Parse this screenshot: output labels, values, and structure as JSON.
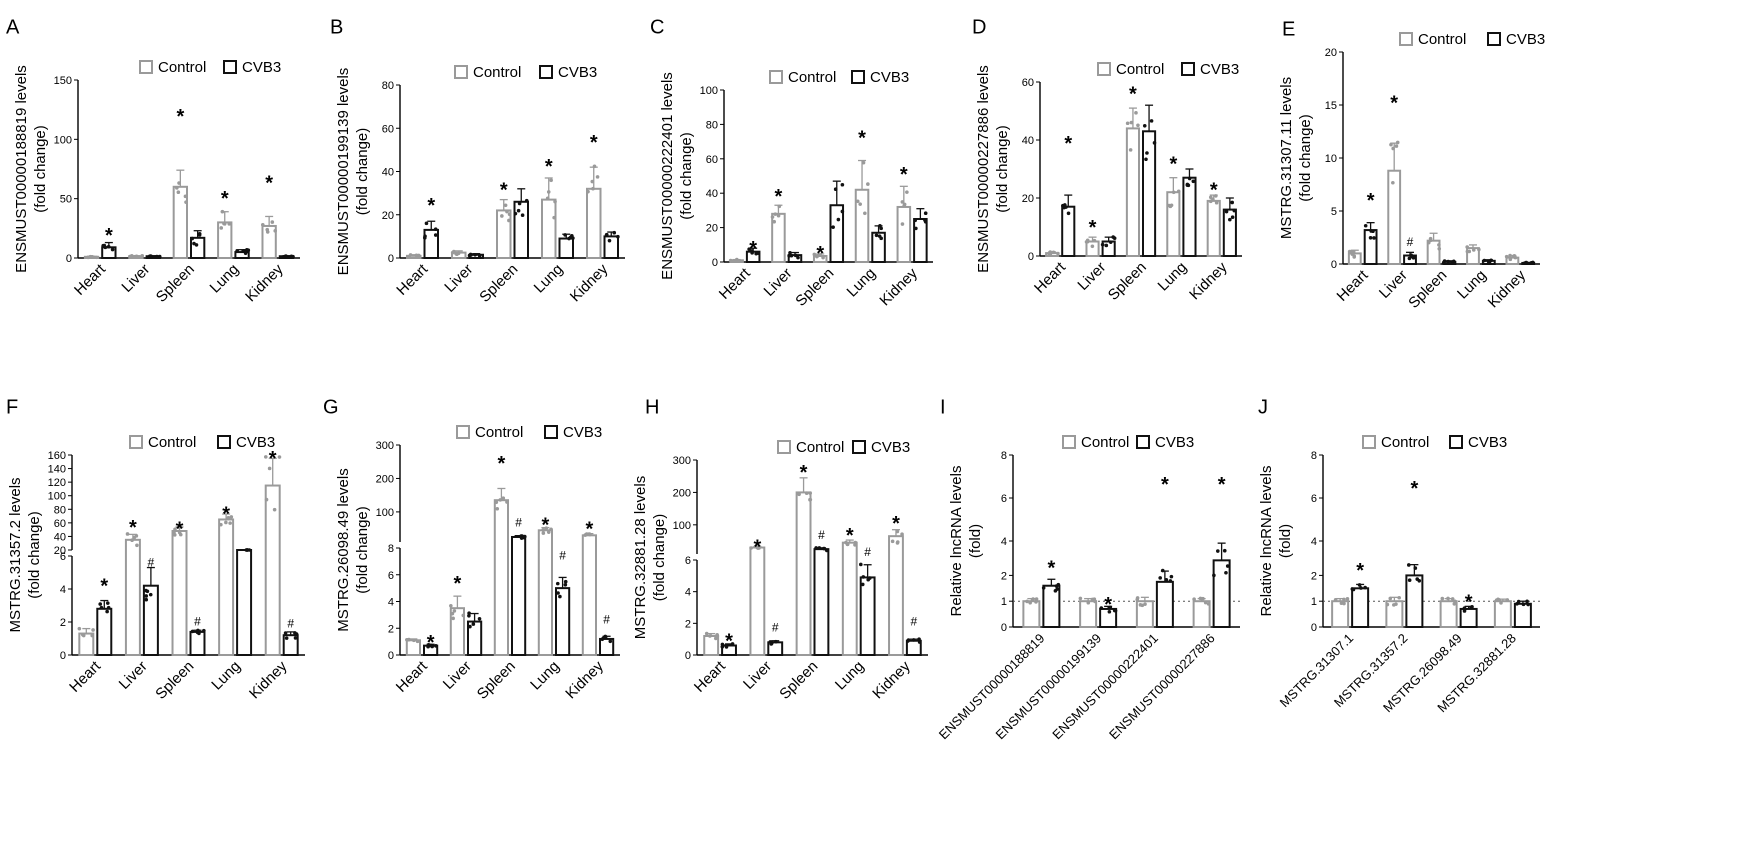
{
  "legend": {
    "control": "Control",
    "cvb3": "CVB3"
  },
  "colors": {
    "control": "#9a9a9a",
    "cvb3": "#111111"
  },
  "chart_data": [
    {
      "id": "A",
      "panel_label": "A",
      "type": "bar",
      "ylabel_lines": [
        "ENSMUST00000188819 levels",
        "(fold change)"
      ],
      "categories": [
        "Heart",
        "Liver",
        "Spleen",
        "Lung",
        "Kidney"
      ],
      "ylim": [
        0,
        150
      ],
      "yticks": [
        0,
        50,
        100,
        150
      ],
      "yticklabels": [
        "0",
        "50",
        "100",
        "150"
      ],
      "series": [
        {
          "name": "Control",
          "values": [
            1,
            1.5,
            60,
            30,
            27
          ],
          "err": [
            0.5,
            0.4,
            14,
            9,
            8
          ]
        },
        {
          "name": "CVB3",
          "values": [
            9,
            1.5,
            17,
            5,
            1.5
          ],
          "err": [
            4,
            0.4,
            6,
            2,
            0.4
          ]
        }
      ],
      "annotations": [
        {
          "series": 1,
          "cat": 0,
          "mark": "*",
          "value": 22
        },
        {
          "series": 0,
          "cat": 2,
          "mark": "*",
          "value": 122
        },
        {
          "series": 0,
          "cat": 3,
          "mark": "*",
          "value": 53
        },
        {
          "series": 0,
          "cat": 4,
          "mark": "*",
          "value": 66
        }
      ]
    },
    {
      "id": "B",
      "panel_label": "B",
      "type": "bar",
      "ylabel_lines": [
        "ENSMUST00000199139 levels",
        "(fold change)"
      ],
      "categories": [
        "Heart",
        "Liver",
        "Spleen",
        "Lung",
        "Kidney"
      ],
      "ylim": [
        0,
        80
      ],
      "yticks": [
        0,
        20,
        40,
        60,
        80
      ],
      "yticklabels": [
        "0",
        "20",
        "40",
        "60",
        "80"
      ],
      "series": [
        {
          "name": "Control",
          "values": [
            1,
            2.5,
            22,
            27,
            32
          ],
          "err": [
            0.5,
            0.8,
            5,
            10,
            10
          ]
        },
        {
          "name": "CVB3",
          "values": [
            13,
            1.5,
            26,
            9,
            10
          ],
          "err": [
            4,
            0.5,
            6,
            2,
            2
          ]
        }
      ],
      "annotations": [
        {
          "series": 1,
          "cat": 0,
          "mark": "*",
          "value": 26
        },
        {
          "series": 0,
          "cat": 2,
          "mark": "*",
          "value": 33
        },
        {
          "series": 0,
          "cat": 3,
          "mark": "*",
          "value": 44
        },
        {
          "series": 0,
          "cat": 4,
          "mark": "*",
          "value": 55
        }
      ]
    },
    {
      "id": "C",
      "panel_label": "C",
      "type": "bar",
      "ylabel_lines": [
        "ENSMUST00000222401 levels",
        "(fold change)"
      ],
      "categories": [
        "Heart",
        "Liver",
        "Spleen",
        "Lung",
        "Kidney"
      ],
      "ylim": [
        0,
        100
      ],
      "yticks": [
        0,
        20,
        40,
        60,
        80,
        100
      ],
      "yticklabels": [
        "0",
        "20",
        "40",
        "60",
        "80",
        "100"
      ],
      "series": [
        {
          "name": "Control",
          "values": [
            1,
            28,
            3.5,
            42,
            32
          ],
          "err": [
            0.4,
            5,
            1.2,
            17,
            12
          ]
        },
        {
          "name": "CVB3",
          "values": [
            6,
            4,
            33,
            17,
            25
          ],
          "err": [
            2,
            1.5,
            14,
            4,
            6
          ]
        }
      ],
      "annotations": [
        {
          "series": 1,
          "cat": 0,
          "mark": "*",
          "value": 10
        },
        {
          "series": 0,
          "cat": 1,
          "mark": "*",
          "value": 40
        },
        {
          "series": 0,
          "cat": 2,
          "mark": "*",
          "value": 7
        },
        {
          "series": 0,
          "cat": 3,
          "mark": "*",
          "value": 74
        },
        {
          "series": 0,
          "cat": 4,
          "mark": "*",
          "value": 53
        }
      ]
    },
    {
      "id": "D",
      "panel_label": "D",
      "type": "bar",
      "ylabel_lines": [
        "ENSMUST00000227886 levels",
        "(fold change)"
      ],
      "categories": [
        "Heart",
        "Liver",
        "Spleen",
        "Lung",
        "Kidney"
      ],
      "ylim": [
        0,
        60
      ],
      "yticks": [
        0,
        20,
        40,
        60
      ],
      "yticklabels": [
        "0",
        "20",
        "40",
        "60"
      ],
      "series": [
        {
          "name": "Control",
          "values": [
            1,
            5,
            44,
            22,
            19
          ],
          "err": [
            0.4,
            1.5,
            7,
            5,
            2
          ]
        },
        {
          "name": "CVB3",
          "values": [
            17,
            5,
            43,
            27,
            16
          ],
          "err": [
            4,
            1.5,
            9,
            3,
            4
          ]
        }
      ],
      "annotations": [
        {
          "series": 1,
          "cat": 0,
          "mark": "*",
          "value": 40
        },
        {
          "series": 0,
          "cat": 1,
          "mark": "*",
          "value": 11
        },
        {
          "series": 0,
          "cat": 2,
          "mark": "*",
          "value": 57
        },
        {
          "series": 0,
          "cat": 3,
          "mark": "*",
          "value": 33
        },
        {
          "series": 0,
          "cat": 4,
          "mark": "*",
          "value": 24
        }
      ]
    },
    {
      "id": "E",
      "panel_label": "E",
      "type": "bar",
      "ylabel_lines": [
        "MSTRG.31307.11 levels",
        "(fold change)"
      ],
      "categories": [
        "Heart",
        "Liver",
        "Spleen",
        "Lung",
        "Kidney"
      ],
      "ylim": [
        0,
        20
      ],
      "yticks": [
        0,
        5,
        10,
        15,
        20
      ],
      "yticklabels": [
        "0",
        "5",
        "10",
        "15",
        "20"
      ],
      "series": [
        {
          "name": "Control",
          "values": [
            1,
            8.8,
            2.2,
            1.5,
            0.6
          ],
          "err": [
            0.3,
            2.6,
            0.7,
            0.3,
            0.2
          ]
        },
        {
          "name": "CVB3",
          "values": [
            3.2,
            0.8,
            0.2,
            0.3,
            0.1
          ],
          "err": [
            0.7,
            0.3,
            0.1,
            0.1,
            0.05
          ]
        }
      ],
      "annotations": [
        {
          "series": 1,
          "cat": 0,
          "mark": "*",
          "value": 6.3
        },
        {
          "series": 0,
          "cat": 1,
          "mark": "*",
          "value": 15.5
        },
        {
          "series": 1,
          "cat": 1,
          "mark": "#",
          "value": 1.9
        }
      ]
    },
    {
      "id": "F",
      "panel_label": "F",
      "type": "bar",
      "broken_axis": true,
      "ylabel_lines": [
        "MSTRG.31357.2 levels",
        "(fold change)"
      ],
      "categories": [
        "Heart",
        "Liver",
        "Spleen",
        "Lung",
        "Kidney"
      ],
      "lower": {
        "ylim": [
          0,
          6
        ],
        "yticks": [
          0,
          2,
          4,
          6
        ],
        "yticklabels": [
          "0",
          "2",
          "4",
          "6"
        ]
      },
      "upper": {
        "ylim": [
          20,
          160
        ],
        "yticks": [
          20,
          40,
          60,
          80,
          100,
          120,
          140,
          160
        ],
        "yticklabels": [
          "20",
          "40",
          "60",
          "80",
          "100",
          "120",
          "140",
          "160"
        ]
      },
      "series": [
        {
          "name": "Control",
          "values": [
            1.3,
            35,
            48,
            65,
            115
          ],
          "err": [
            0.3,
            8,
            6,
            8,
            40
          ]
        },
        {
          "name": "CVB3",
          "values": [
            2.8,
            4.2,
            1.4,
            12,
            1.2
          ],
          "err": [
            0.5,
            1.1,
            0.1,
            3,
            0.2
          ]
        }
      ],
      "annotations": [
        {
          "series": 1,
          "cat": 0,
          "mark": "*",
          "value": 4.4
        },
        {
          "series": 0,
          "cat": 1,
          "mark": "*",
          "value": 58
        },
        {
          "series": 1,
          "cat": 1,
          "mark": "#",
          "value": 5.5
        },
        {
          "series": 0,
          "cat": 2,
          "mark": "*",
          "value": 56
        },
        {
          "series": 1,
          "cat": 2,
          "mark": "#",
          "value": 1.9
        },
        {
          "series": 0,
          "cat": 3,
          "mark": "*",
          "value": 78
        },
        {
          "series": 0,
          "cat": 4,
          "mark": "*",
          "value": 160
        },
        {
          "series": 1,
          "cat": 4,
          "mark": "#",
          "value": 1.8
        }
      ]
    },
    {
      "id": "G",
      "panel_label": "G",
      "type": "bar",
      "broken_axis": true,
      "ylabel_lines": [
        "MSTRG.26098.49 levels",
        "(fold change)"
      ],
      "categories": [
        "Heart",
        "Liver",
        "Spleen",
        "Lung",
        "Kidney"
      ],
      "lower": {
        "ylim": [
          0,
          8
        ],
        "yticks": [
          0,
          2,
          4,
          6,
          8
        ],
        "yticklabels": [
          "0",
          "2",
          "4",
          "6",
          "8"
        ]
      },
      "upper": {
        "ylim": [
          10,
          300
        ],
        "yticks": [
          100,
          200,
          300
        ],
        "yticklabels": [
          "100",
          "200",
          "300"
        ]
      },
      "series": [
        {
          "name": "Control",
          "values": [
            1.1,
            3.5,
            135,
            45,
            30
          ],
          "err": [
            0.1,
            0.9,
            35,
            8,
            5
          ]
        },
        {
          "name": "CVB3",
          "values": [
            0.7,
            2.5,
            25,
            5,
            1.2
          ],
          "err": [
            0.1,
            0.6,
            4,
            0.8,
            0.2
          ]
        }
      ],
      "annotations": [
        {
          "series": 1,
          "cat": 0,
          "mark": "*",
          "value": 1.2
        },
        {
          "series": 0,
          "cat": 1,
          "mark": "*",
          "value": 5.6
        },
        {
          "series": 0,
          "cat": 2,
          "mark": "*",
          "value": 255
        },
        {
          "series": 1,
          "cat": 2,
          "mark": "#",
          "value": 62
        },
        {
          "series": 0,
          "cat": 3,
          "mark": "*",
          "value": 72
        },
        {
          "series": 1,
          "cat": 3,
          "mark": "#",
          "value": 7.3
        },
        {
          "series": 0,
          "cat": 4,
          "mark": "*",
          "value": 60
        },
        {
          "series": 1,
          "cat": 4,
          "mark": "#",
          "value": 2.5
        }
      ]
    },
    {
      "id": "H",
      "panel_label": "H",
      "type": "bar",
      "broken_axis": true,
      "ylabel_lines": [
        "MSTRG.32881.28 levels",
        "(fold change)"
      ],
      "categories": [
        "Heart",
        "Liver",
        "Spleen",
        "Lung",
        "Kidney"
      ],
      "lower": {
        "ylim": [
          0,
          6
        ],
        "yticks": [
          0,
          2,
          4,
          6
        ],
        "yticklabels": [
          "0",
          "2",
          "4",
          "6"
        ]
      },
      "upper": {
        "ylim": [
          10,
          300
        ],
        "yticks": [
          100,
          200,
          300
        ],
        "yticklabels": [
          "100",
          "200",
          "300"
        ]
      },
      "series": [
        {
          "name": "Control",
          "values": [
            1.2,
            30,
            200,
            45,
            65
          ],
          "err": [
            0.15,
            3,
            45,
            8,
            20
          ]
        },
        {
          "name": "CVB3",
          "values": [
            0.6,
            0.8,
            25,
            4.9,
            0.9
          ],
          "err": [
            0.1,
            0.1,
            4,
            0.8,
            0.1
          ]
        }
      ],
      "annotations": [
        {
          "series": 1,
          "cat": 0,
          "mark": "*",
          "value": 1.1
        },
        {
          "series": 0,
          "cat": 1,
          "mark": "*",
          "value": 42
        },
        {
          "series": 1,
          "cat": 1,
          "mark": "#",
          "value": 1.6
        },
        {
          "series": 0,
          "cat": 2,
          "mark": "*",
          "value": 272
        },
        {
          "series": 1,
          "cat": 2,
          "mark": "#",
          "value": 62
        },
        {
          "series": 0,
          "cat": 3,
          "mark": "*",
          "value": 78
        },
        {
          "series": 1,
          "cat": 3,
          "mark": "#",
          "value": 6.7
        },
        {
          "series": 0,
          "cat": 4,
          "mark": "*",
          "value": 115
        },
        {
          "series": 1,
          "cat": 4,
          "mark": "#",
          "value": 2
        }
      ]
    },
    {
      "id": "I",
      "panel_label": "I",
      "type": "bar",
      "refline": 1,
      "ylabel_lines": [
        "Relative lncRNA levels",
        "(fold)"
      ],
      "categories": [
        "ENSMUST00000188819",
        "ENSMUST00000199139",
        "ENSMUST00000222401",
        "ENSMUST00000227886"
      ],
      "ylim": [
        0,
        8
      ],
      "yticks": [
        0,
        1,
        2,
        4,
        6,
        8
      ],
      "yticklabels": [
        "0",
        "1",
        "2",
        "4",
        "6",
        "8"
      ],
      "series": [
        {
          "name": "Control",
          "values": [
            1,
            1,
            1,
            1
          ],
          "err": [
            0.1,
            0.1,
            0.15,
            0.1
          ]
        },
        {
          "name": "CVB3",
          "values": [
            1.6,
            0.7,
            2.1,
            3.1
          ],
          "err": [
            0.25,
            0.1,
            0.5,
            0.8
          ]
        }
      ],
      "annotations": [
        {
          "series": 1,
          "cat": 0,
          "mark": "*",
          "value": 2.9
        },
        {
          "series": 1,
          "cat": 1,
          "mark": "*",
          "value": 1
        },
        {
          "series": 1,
          "cat": 2,
          "mark": "*",
          "value": 6.8
        },
        {
          "series": 1,
          "cat": 3,
          "mark": "*",
          "value": 6.8
        }
      ]
    },
    {
      "id": "J",
      "panel_label": "J",
      "type": "bar",
      "refline": 1,
      "ylabel_lines": [
        "Relative lncRNA levels",
        "(fold)"
      ],
      "categories": [
        "MSTRG.31307.1",
        "MSTRG.31357.2",
        "MSTRG.26098.49",
        "MSTRG.32881.28"
      ],
      "ylim": [
        0,
        8
      ],
      "yticks": [
        0,
        1,
        2,
        4,
        6,
        8
      ],
      "yticklabels": [
        "0",
        "1",
        "2",
        "4",
        "6",
        "8"
      ],
      "series": [
        {
          "name": "Control",
          "values": [
            1,
            1,
            1,
            1
          ],
          "err": [
            0.1,
            0.15,
            0.1,
            0.08
          ]
        },
        {
          "name": "CVB3",
          "values": [
            1.5,
            2.4,
            0.7,
            0.9
          ],
          "err": [
            0.15,
            0.5,
            0.1,
            0.1
          ]
        }
      ],
      "annotations": [
        {
          "series": 1,
          "cat": 0,
          "mark": "*",
          "value": 2.8
        },
        {
          "series": 1,
          "cat": 1,
          "mark": "*",
          "value": 6.6
        },
        {
          "series": 1,
          "cat": 2,
          "mark": "*",
          "value": 1.1
        }
      ]
    }
  ]
}
